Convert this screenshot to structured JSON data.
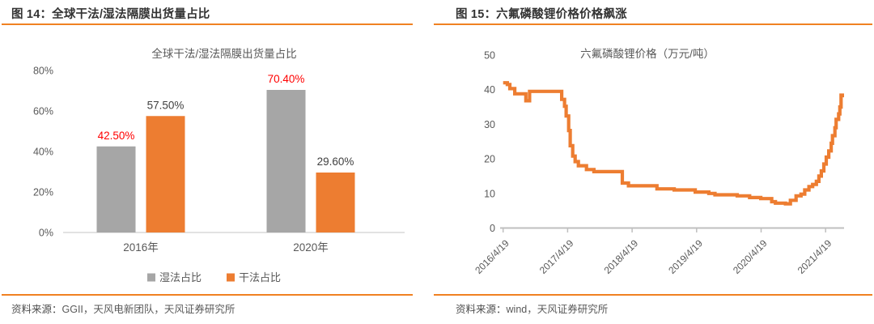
{
  "page": {
    "accent_color": "#F08122",
    "background": "#FFFFFF"
  },
  "figure14": {
    "header": "图 14：全球干法/湿法隔膜出货量占比",
    "source_label": "资料来源：",
    "source_text": "GGII，天风电新团队，天风证券研究所"
  },
  "figure15": {
    "header": "图 15：六氟磷酸锂价格价格飙涨",
    "source_label": "资料来源：",
    "source_text": "wind，天风证券研究所"
  },
  "chart_data": [
    {
      "id": "separator-shipment-share",
      "type": "bar",
      "title": "全球干法/湿法隔膜出货量占比",
      "categories": [
        "2016年",
        "2020年"
      ],
      "series": [
        {
          "name": "湿法占比",
          "color": "#A6A6A6",
          "values": [
            42.5,
            70.4
          ],
          "labels": [
            "42.50%",
            "70.40%"
          ],
          "label_color": "#FF0000"
        },
        {
          "name": "干法占比",
          "color": "#ED7D31",
          "values": [
            57.5,
            29.6
          ],
          "labels": [
            "57.50%",
            "29.60%"
          ],
          "label_color": "#404040"
        }
      ],
      "y_ticks": [
        "0%",
        "20%",
        "40%",
        "60%",
        "80%"
      ],
      "y_tick_values": [
        0,
        20,
        40,
        60,
        80
      ],
      "ylim": [
        0,
        80
      ],
      "grid": false,
      "legend_position": "bottom",
      "text_color": "#595959",
      "axis_color": "#D9D9D9"
    },
    {
      "id": "lipf6-price",
      "type": "line",
      "title": "六氟磷酸锂价格（万元/吨）",
      "y_ticks": [
        0,
        10,
        20,
        30,
        40,
        50
      ],
      "ylim": [
        0,
        50
      ],
      "x_ticks": [
        "2016/4/19",
        "2017/4/19",
        "2018/4/19",
        "2019/4/19",
        "2020/4/19",
        "2021/4/19"
      ],
      "step": true,
      "line_color": "#ED7D31",
      "text_color": "#595959",
      "axis_color": "#BFBFBF",
      "grid": false,
      "points": [
        [
          "2016/4/19",
          42
        ],
        [
          "2016/5/13",
          41.5
        ],
        [
          "2016/5/27",
          40.3
        ],
        [
          "2016/6/24",
          38.8
        ],
        [
          "2016/8/26",
          36.8
        ],
        [
          "2016/9/16",
          39.5
        ],
        [
          "2017/3/17",
          37.2
        ],
        [
          "2017/4/2",
          35.2
        ],
        [
          "2017/4/11",
          32.4
        ],
        [
          "2017/4/25",
          28.2
        ],
        [
          "2017/5/4",
          23.8
        ],
        [
          "2017/5/18",
          20.8
        ],
        [
          "2017/6/1",
          19.2
        ],
        [
          "2017/6/19",
          18.0
        ],
        [
          "2017/8/4",
          16.9
        ],
        [
          "2017/9/15",
          16.3
        ],
        [
          "2018/2/23",
          13.0
        ],
        [
          "2018/3/30",
          12.2
        ],
        [
          "2018/9/7",
          11.3
        ],
        [
          "2018/12/14",
          11.0
        ],
        [
          "2019/4/12",
          10.4
        ],
        [
          "2019/6/28",
          10.0
        ],
        [
          "2019/8/2",
          9.6
        ],
        [
          "2019/12/6",
          9.3
        ],
        [
          "2020/2/14",
          8.8
        ],
        [
          "2020/4/17",
          8.5
        ],
        [
          "2020/6/18",
          7.6
        ],
        [
          "2020/7/9",
          7.2
        ],
        [
          "2020/9/4",
          7.0
        ],
        [
          "2020/10/2",
          8.0
        ],
        [
          "2020/11/3",
          9.3
        ],
        [
          "2020/12/1",
          9.8
        ],
        [
          "2020/12/22",
          11.0
        ],
        [
          "2021/1/15",
          12.0
        ],
        [
          "2021/2/5",
          12.6
        ],
        [
          "2021/2/26",
          13.5
        ],
        [
          "2021/3/12",
          15.0
        ],
        [
          "2021/3/26",
          16.5
        ],
        [
          "2021/4/9",
          18.5
        ],
        [
          "2021/4/23",
          20.5
        ],
        [
          "2021/5/7",
          22.3
        ],
        [
          "2021/5/21",
          24.5
        ],
        [
          "2021/5/28",
          26.7
        ],
        [
          "2021/6/11",
          29.0
        ],
        [
          "2021/6/18",
          31.4
        ],
        [
          "2021/7/2",
          33.0
        ],
        [
          "2021/7/9",
          35.0
        ],
        [
          "2021/7/16",
          38.4
        ],
        [
          "2021/7/23",
          37.8
        ]
      ]
    }
  ]
}
